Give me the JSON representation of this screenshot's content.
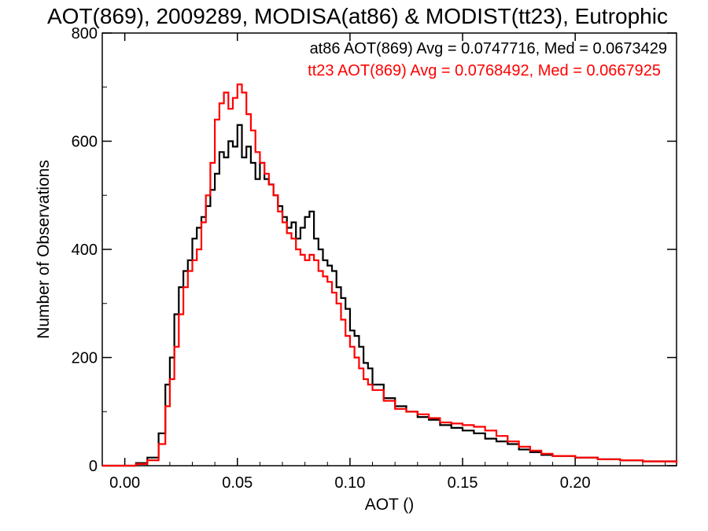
{
  "chart_data": {
    "type": "line",
    "step": true,
    "title": "AOT(869), 2009289, MODISA(at86) & MODIST(tt23), Eutrophic",
    "xlabel": "AOT ()",
    "ylabel": "Number of Observations",
    "xlim": [
      -0.01,
      0.245
    ],
    "ylim": [
      0,
      800
    ],
    "xticks": [
      0.0,
      0.05,
      0.1,
      0.15,
      0.2
    ],
    "xtick_labels": [
      "0.00",
      "0.05",
      "0.10",
      "0.15",
      "0.20"
    ],
    "yticks": [
      0,
      200,
      400,
      600,
      800
    ],
    "ytick_labels": [
      "0",
      "200",
      "400",
      "600",
      "800"
    ],
    "grid": false,
    "legend_placement": "top-right",
    "series": [
      {
        "name": "at86 AOT(869) Avg = 0.0747716, Med = 0.0673429",
        "color": "#000000",
        "x": [
          -0.01,
          0.0,
          0.005,
          0.01,
          0.015,
          0.018,
          0.02,
          0.022,
          0.024,
          0.026,
          0.028,
          0.03,
          0.032,
          0.034,
          0.036,
          0.038,
          0.04,
          0.042,
          0.044,
          0.046,
          0.048,
          0.05,
          0.052,
          0.054,
          0.056,
          0.058,
          0.06,
          0.062,
          0.064,
          0.066,
          0.068,
          0.07,
          0.072,
          0.074,
          0.076,
          0.078,
          0.08,
          0.082,
          0.084,
          0.086,
          0.088,
          0.09,
          0.092,
          0.094,
          0.096,
          0.098,
          0.1,
          0.102,
          0.104,
          0.106,
          0.108,
          0.11,
          0.115,
          0.12,
          0.125,
          0.13,
          0.135,
          0.14,
          0.145,
          0.15,
          0.155,
          0.16,
          0.165,
          0.17,
          0.175,
          0.18,
          0.185,
          0.19,
          0.2,
          0.21,
          0.22,
          0.23,
          0.245
        ],
        "y": [
          0,
          0,
          5,
          15,
          60,
          150,
          200,
          280,
          330,
          360,
          380,
          420,
          440,
          460,
          480,
          510,
          540,
          580,
          570,
          600,
          590,
          630,
          570,
          590,
          560,
          530,
          560,
          530,
          520,
          500,
          480,
          460,
          440,
          450,
          420,
          440,
          460,
          470,
          420,
          400,
          380,
          370,
          360,
          330,
          310,
          290,
          250,
          240,
          220,
          190,
          180,
          150,
          125,
          110,
          100,
          90,
          85,
          75,
          70,
          65,
          60,
          50,
          45,
          40,
          30,
          25,
          20,
          18,
          15,
          12,
          10,
          8,
          5
        ]
      },
      {
        "name": "tt23 AOT(869) Avg = 0.0768492, Med = 0.0667925",
        "color": "#ff0000",
        "x": [
          -0.01,
          0.0,
          0.005,
          0.01,
          0.015,
          0.018,
          0.02,
          0.022,
          0.024,
          0.026,
          0.028,
          0.03,
          0.032,
          0.034,
          0.036,
          0.038,
          0.04,
          0.042,
          0.044,
          0.046,
          0.048,
          0.05,
          0.052,
          0.054,
          0.056,
          0.058,
          0.06,
          0.062,
          0.064,
          0.066,
          0.068,
          0.07,
          0.072,
          0.074,
          0.076,
          0.078,
          0.08,
          0.082,
          0.084,
          0.086,
          0.088,
          0.09,
          0.092,
          0.094,
          0.096,
          0.098,
          0.1,
          0.102,
          0.104,
          0.106,
          0.108,
          0.11,
          0.115,
          0.12,
          0.125,
          0.13,
          0.135,
          0.14,
          0.145,
          0.15,
          0.155,
          0.16,
          0.165,
          0.17,
          0.175,
          0.18,
          0.185,
          0.19,
          0.2,
          0.21,
          0.22,
          0.23,
          0.245
        ],
        "y": [
          0,
          0,
          3,
          10,
          40,
          110,
          160,
          220,
          280,
          330,
          360,
          380,
          400,
          450,
          500,
          560,
          640,
          670,
          690,
          660,
          680,
          705,
          690,
          650,
          620,
          580,
          560,
          540,
          520,
          500,
          470,
          450,
          430,
          420,
          400,
          390,
          380,
          390,
          380,
          360,
          350,
          340,
          320,
          300,
          270,
          240,
          220,
          200,
          180,
          160,
          150,
          140,
          120,
          105,
          100,
          95,
          88,
          80,
          78,
          75,
          72,
          65,
          55,
          45,
          35,
          28,
          22,
          18,
          15,
          12,
          10,
          8,
          5
        ]
      }
    ]
  }
}
